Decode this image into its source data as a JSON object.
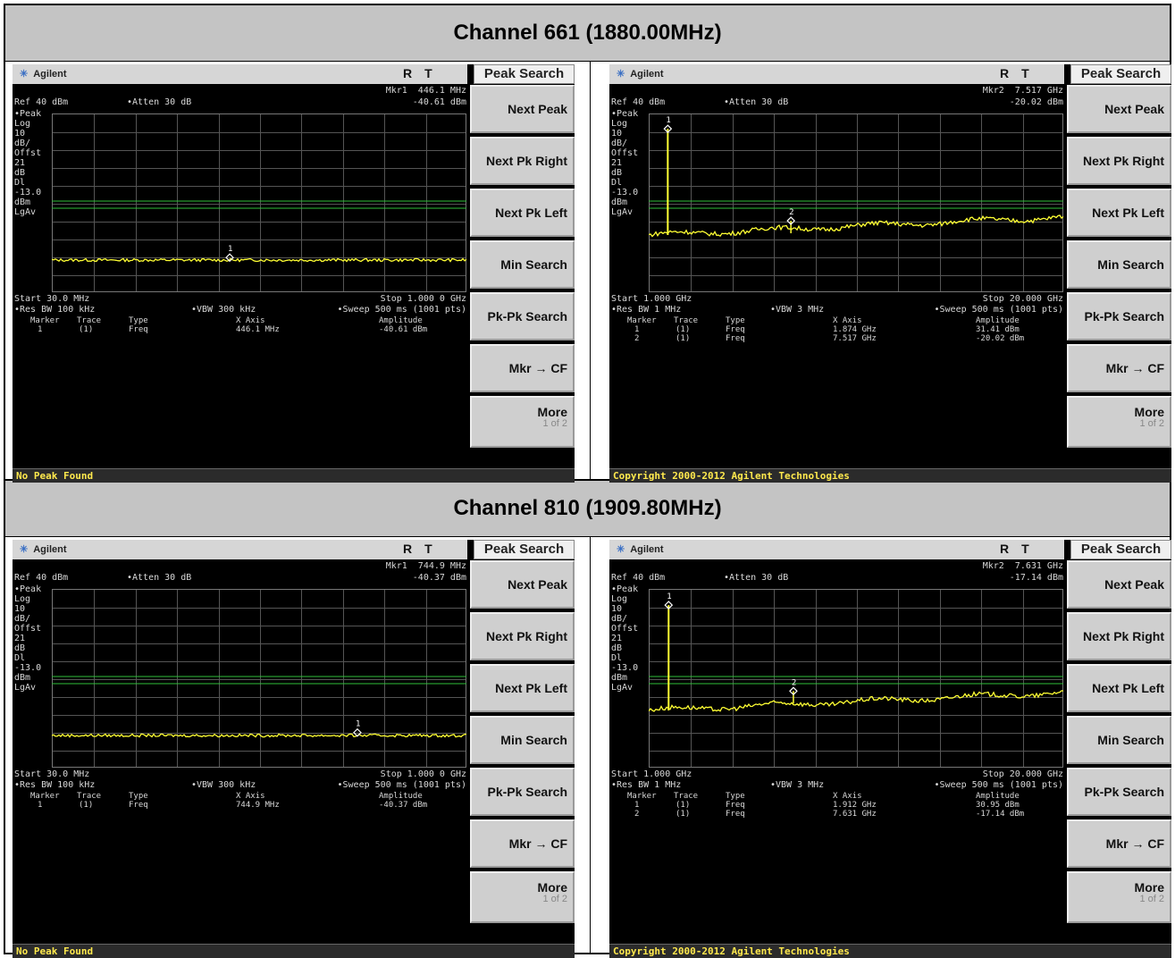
{
  "headers": [
    "Channel 661 (1880.00MHz)",
    "Channel 810 (1909.80MHz)"
  ],
  "left_labels": [
    "•Peak",
    "Log",
    "10",
    "dB/",
    "Offst",
    "21",
    "dB",
    "Dl",
    "-13.0",
    "dBm",
    "LgAv"
  ],
  "softkeys": {
    "title": "Peak Search",
    "next_peak": "Next Peak",
    "next_pk_right": "Next Pk Right",
    "next_pk_left": "Next Pk Left",
    "min_search": "Min Search",
    "pk_pk_search": "Pk-Pk Search",
    "mkr_cf": "Mkr → CF",
    "more": "More",
    "more_sub": "1 of 2"
  },
  "table_headers": {
    "marker": "Marker",
    "trace": "Trace",
    "type": "Type",
    "xaxis": "X Axis",
    "amplitude": "Amplitude"
  },
  "screens": [
    {
      "logo": "Agilent",
      "rt": "RT",
      "mkr_line": "Mkr1  446.1 MHz",
      "mkr_value": "-40.61 dBm",
      "ref": "Ref 40 dBm",
      "atten": "•Atten 30 dB",
      "start": "Start 30.0 MHz",
      "stop": "Stop 1.000 0 GHz",
      "res_bw": "•Res BW 100 kHz",
      "vbw": "•VBW 300 kHz",
      "sweep": "•Sweep 500 ms (1001 pts)",
      "rows": [
        {
          "marker": "1",
          "trace": "(1)",
          "type": "Freq",
          "x": "446.1 MHz",
          "amp": "-40.61 dBm"
        }
      ],
      "status": "No Peak Found",
      "chart_data": {
        "type": "line",
        "x_unit": "MHz",
        "xlim": [
          30,
          1000
        ],
        "ylim": [
          -60,
          40
        ],
        "ref_level_dbm": 40,
        "scale_db_per_div": 10,
        "display_line_dbm": -13.0,
        "markers": [
          {
            "id": "1",
            "x": 446.1,
            "y": -40.61
          }
        ],
        "noise_floor_dbm": -42
      }
    },
    {
      "logo": "Agilent",
      "rt": "RT",
      "mkr_line": "Mkr2  7.517 GHz",
      "mkr_value": "-20.02 dBm",
      "ref": "Ref 40 dBm",
      "atten": "•Atten 30 dB",
      "start": "Start 1.000 GHz",
      "stop": "Stop 20.000 GHz",
      "res_bw": "•Res BW 1 MHz",
      "vbw": "•VBW 3 MHz",
      "sweep": "•Sweep 500 ms (1001 pts)",
      "rows": [
        {
          "marker": "1",
          "trace": "(1)",
          "type": "Freq",
          "x": "1.874 GHz",
          "amp": "31.41 dBm"
        },
        {
          "marker": "2",
          "trace": "(1)",
          "type": "Freq",
          "x": "7.517 GHz",
          "amp": "-20.02 dBm"
        }
      ],
      "status": "Copyright 2000-2012 Agilent Technologies",
      "chart_data": {
        "type": "line",
        "x_unit": "GHz",
        "xlim": [
          1,
          20
        ],
        "ylim": [
          -60,
          40
        ],
        "ref_level_dbm": 40,
        "scale_db_per_div": 10,
        "display_line_dbm": -13.0,
        "markers": [
          {
            "id": "1",
            "x": 1.874,
            "y": 31.41
          },
          {
            "id": "2",
            "x": 7.517,
            "y": -20.02
          }
        ],
        "noise_floor_dbm": -28
      }
    },
    {
      "logo": "Agilent",
      "rt": "RT",
      "mkr_line": "Mkr1  744.9 MHz",
      "mkr_value": "-40.37 dBm",
      "ref": "Ref 40 dBm",
      "atten": "•Atten 30 dB",
      "start": "Start 30.0 MHz",
      "stop": "Stop 1.000 0 GHz",
      "res_bw": "•Res BW 100 kHz",
      "vbw": "•VBW 300 kHz",
      "sweep": "•Sweep 500 ms (1001 pts)",
      "rows": [
        {
          "marker": "1",
          "trace": "(1)",
          "type": "Freq",
          "x": "744.9 MHz",
          "amp": "-40.37 dBm"
        }
      ],
      "status": "No Peak Found",
      "chart_data": {
        "type": "line",
        "x_unit": "MHz",
        "xlim": [
          30,
          1000
        ],
        "ylim": [
          -60,
          40
        ],
        "ref_level_dbm": 40,
        "scale_db_per_div": 10,
        "display_line_dbm": -13.0,
        "markers": [
          {
            "id": "1",
            "x": 744.9,
            "y": -40.37
          }
        ],
        "noise_floor_dbm": -42
      }
    },
    {
      "logo": "Agilent",
      "rt": "RT",
      "mkr_line": "Mkr2  7.631 GHz",
      "mkr_value": "-17.14 dBm",
      "ref": "Ref 40 dBm",
      "atten": "•Atten 30 dB",
      "start": "Start 1.000 GHz",
      "stop": "Stop 20.000 GHz",
      "res_bw": "•Res BW 1 MHz",
      "vbw": "•VBW 3 MHz",
      "sweep": "•Sweep 500 ms (1001 pts)",
      "rows": [
        {
          "marker": "1",
          "trace": "(1)",
          "type": "Freq",
          "x": "1.912 GHz",
          "amp": "30.95 dBm"
        },
        {
          "marker": "2",
          "trace": "(1)",
          "type": "Freq",
          "x": "7.631 GHz",
          "amp": "-17.14 dBm"
        }
      ],
      "status": "Copyright 2000-2012 Agilent Technologies",
      "chart_data": {
        "type": "line",
        "x_unit": "GHz",
        "xlim": [
          1,
          20
        ],
        "ylim": [
          -60,
          40
        ],
        "ref_level_dbm": 40,
        "scale_db_per_div": 10,
        "display_line_dbm": -13.0,
        "markers": [
          {
            "id": "1",
            "x": 1.912,
            "y": 30.95
          },
          {
            "id": "2",
            "x": 7.631,
            "y": -17.14
          }
        ],
        "noise_floor_dbm": -28
      }
    }
  ],
  "colors": {
    "trace": "#ffff33",
    "display_line": "#2fbf3a",
    "header_bg": "#c4c4c4",
    "status_text": "#ffe94d"
  }
}
